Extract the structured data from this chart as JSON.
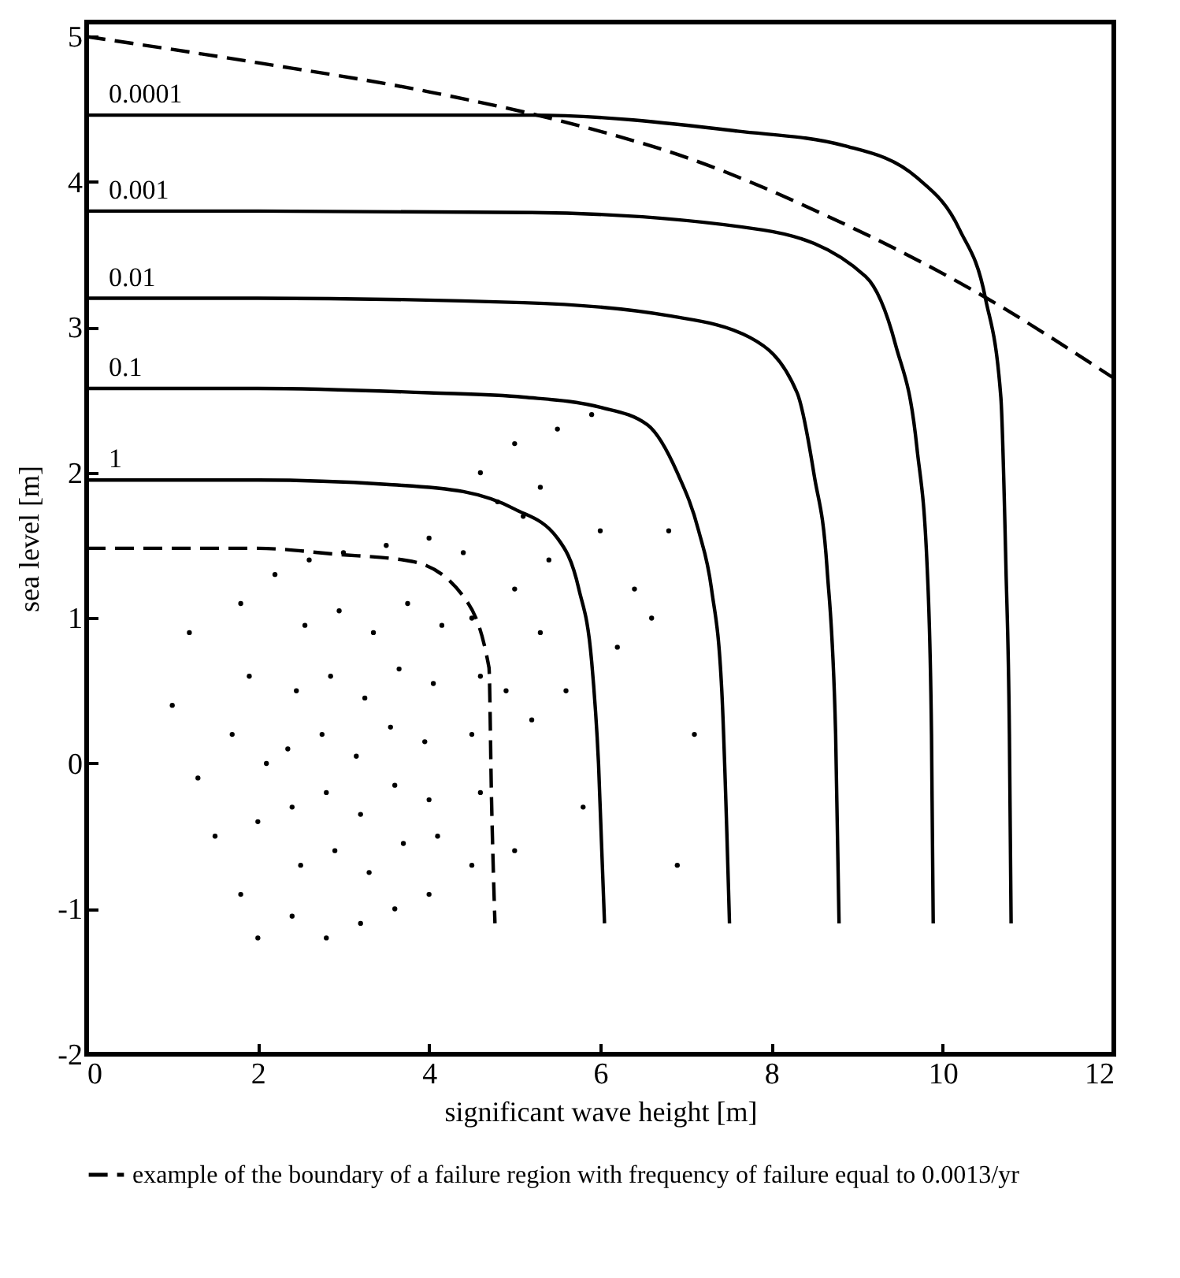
{
  "chart_data": {
    "type": "line",
    "xlabel": "significant wave height [m]",
    "ylabel": "sea level [m]",
    "xlim": [
      0,
      12
    ],
    "xticks": [
      0,
      2,
      4,
      6,
      8,
      10,
      12
    ],
    "ylim": [
      -2,
      5.1
    ],
    "yticks": [
      -2,
      -1,
      0,
      1,
      2,
      3,
      4,
      5
    ],
    "grid": false,
    "legend": "bottom",
    "series": [
      {
        "type": "scatter",
        "color": "#000000",
        "x": [
          2.5,
          2.9,
          3.3,
          3.7,
          4.1,
          2.4,
          2.8,
          3.2,
          3.6,
          4.0,
          2.35,
          2.75,
          3.15,
          3.55,
          3.95,
          2.45,
          2.85,
          3.25,
          3.65,
          4.05,
          2.55,
          2.95,
          3.35,
          3.75,
          4.15,
          1.2,
          1.0,
          1.3,
          1.5,
          1.8,
          2.0,
          2.4,
          2.8,
          3.2,
          3.6,
          4.0,
          4.5,
          1.7,
          1.9,
          1.8,
          2.2,
          2.6,
          3.0,
          3.5,
          4.0,
          4.4,
          4.5,
          4.6,
          4.5,
          4.6,
          2.0,
          2.1,
          4.8,
          5.1,
          5.3,
          4.6,
          5.0,
          5.5,
          5.9,
          5.4,
          5.0,
          5.3,
          4.9,
          5.2,
          5.6,
          6.2,
          6.4,
          6.6,
          6.0,
          6.8,
          5.8,
          6.9,
          5.0,
          7.1
        ],
        "values": [
          -0.7,
          -0.6,
          -0.75,
          -0.55,
          -0.5,
          -0.3,
          -0.2,
          -0.35,
          -0.15,
          -0.25,
          0.1,
          0.2,
          0.05,
          0.25,
          0.15,
          0.5,
          0.6,
          0.45,
          0.65,
          0.55,
          0.95,
          1.05,
          0.9,
          1.1,
          0.95,
          0.9,
          0.4,
          -0.1,
          -0.5,
          -0.9,
          -1.2,
          -1.05,
          -1.2,
          -1.1,
          -1.0,
          -0.9,
          -0.7,
          0.2,
          0.6,
          1.1,
          1.3,
          1.4,
          1.45,
          1.5,
          1.55,
          1.45,
          1.0,
          0.6,
          0.2,
          -0.2,
          -0.4,
          0.0,
          1.8,
          1.7,
          1.9,
          2.0,
          2.2,
          2.3,
          2.4,
          1.4,
          1.2,
          0.9,
          0.5,
          0.3,
          0.5,
          0.8,
          1.2,
          1.0,
          1.6,
          1.6,
          -0.3,
          -0.7,
          -0.6,
          0.2
        ]
      },
      {
        "name": "1",
        "color": "#000000",
        "line_style": "solid",
        "x": [
          0,
          2,
          3.5,
          4.4,
          5.0,
          5.5,
          5.75,
          5.9,
          5.98,
          6.05
        ],
        "values": [
          1.95,
          1.95,
          1.92,
          1.87,
          1.75,
          1.55,
          1.2,
          0.7,
          0,
          -1.1
        ]
      },
      {
        "name": "0.1",
        "color": "#000000",
        "line_style": "solid",
        "x": [
          0,
          2,
          4,
          5.1,
          6,
          6.55,
          6.9,
          7.15,
          7.3,
          7.42,
          7.51
        ],
        "values": [
          2.58,
          2.58,
          2.55,
          2.52,
          2.45,
          2.33,
          2.0,
          1.6,
          1.2,
          0.5,
          -1.1
        ]
      },
      {
        "name": "0.01",
        "color": "#000000",
        "line_style": "solid",
        "x": [
          0,
          2,
          5.1,
          6.8,
          7.75,
          8.3,
          8.5,
          8.65,
          8.75,
          8.79
        ],
        "values": [
          3.2,
          3.2,
          3.17,
          3.08,
          2.93,
          2.55,
          1.98,
          1.34,
          0.2,
          -1.1
        ]
      },
      {
        "name": "0.001",
        "color": "#000000",
        "line_style": "solid",
        "x": [
          0,
          2,
          5.2,
          7.9,
          9.1,
          9.45,
          9.7,
          9.82,
          9.87,
          9.89
        ],
        "values": [
          3.8,
          3.8,
          3.79,
          3.67,
          3.35,
          2.88,
          2.17,
          1.34,
          0.2,
          -1.1
        ]
      },
      {
        "name": "0.0001",
        "color": "#000000",
        "line_style": "solid",
        "x": [
          0,
          2,
          5.2,
          7.6,
          8.85,
          9.7,
          10.2,
          10.5,
          10.68,
          10.74,
          10.78,
          10.8
        ],
        "values": [
          4.46,
          4.46,
          4.46,
          4.35,
          4.25,
          4.03,
          3.67,
          3.2,
          2.52,
          1.34,
          0.2,
          -1.1
        ]
      },
      {
        "name": "example of the boundary of a failure region with frequency of failure equal to 0.0013/yr",
        "color": "#000000",
        "line_style": "dashed",
        "x": [
          0,
          2,
          4,
          5.8,
          7.0,
          8.6,
          10.4,
          12
        ],
        "values": [
          5.0,
          4.82,
          4.62,
          4.38,
          4.17,
          3.78,
          3.24,
          2.65
        ]
      },
      {
        "color": "#000000",
        "line_style": "dashed",
        "x": [
          0,
          2,
          2.9,
          3.8,
          4.4,
          4.7,
          4.73,
          4.77
        ],
        "values": [
          1.48,
          1.48,
          1.44,
          1.39,
          1.15,
          0.66,
          -0.25,
          -1.1
        ]
      }
    ]
  }
}
